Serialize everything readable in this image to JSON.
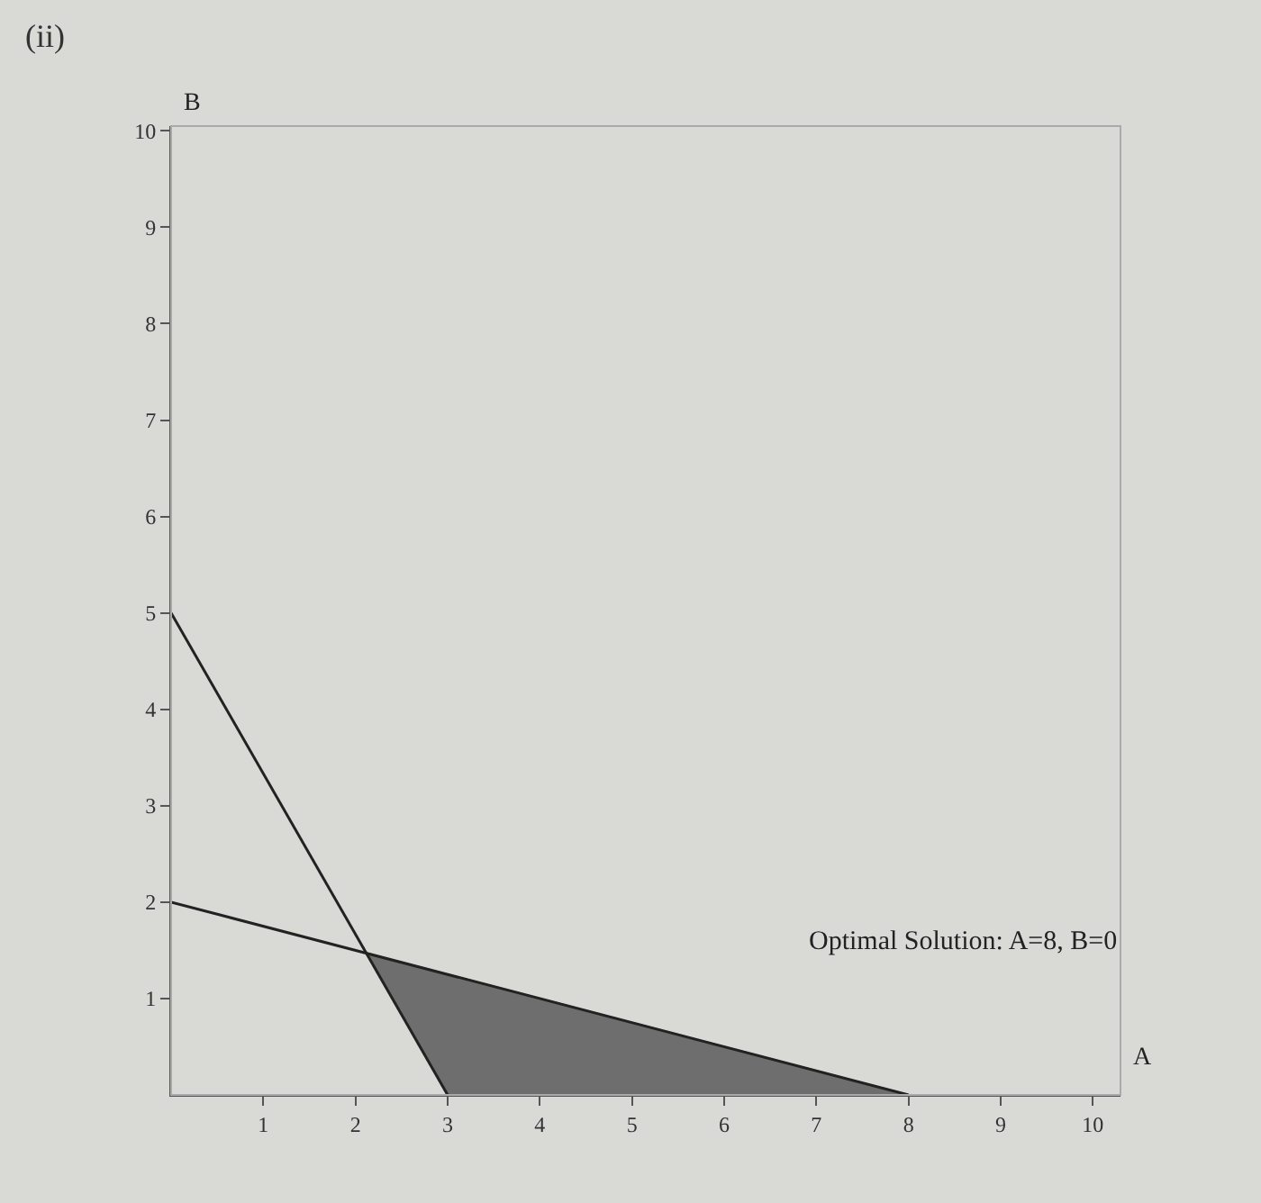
{
  "chart_data": {
    "type": "line",
    "title": "(ii)",
    "xlabel": "A",
    "ylabel": "B",
    "xlim": [
      0,
      10.3
    ],
    "ylim": [
      0,
      10.05
    ],
    "xticks": [
      1,
      2,
      3,
      4,
      5,
      6,
      7,
      8,
      9,
      10
    ],
    "yticks": [
      1,
      2,
      3,
      4,
      5,
      6,
      7,
      8,
      9,
      10
    ],
    "series": [
      {
        "type": "area",
        "color": "#6e6e6e",
        "x": [
          2.12,
          3,
          8,
          2.12
        ],
        "values": [
          1.47,
          0,
          0,
          1.47
        ]
      },
      {
        "color": "#222222",
        "x": [
          0,
          3
        ],
        "values": [
          5,
          0
        ]
      },
      {
        "color": "#222222",
        "x": [
          0,
          8
        ],
        "values": [
          2,
          0
        ]
      }
    ],
    "annotations": [
      "Optimal Solution: A=8, B=0"
    ],
    "grid": false
  }
}
